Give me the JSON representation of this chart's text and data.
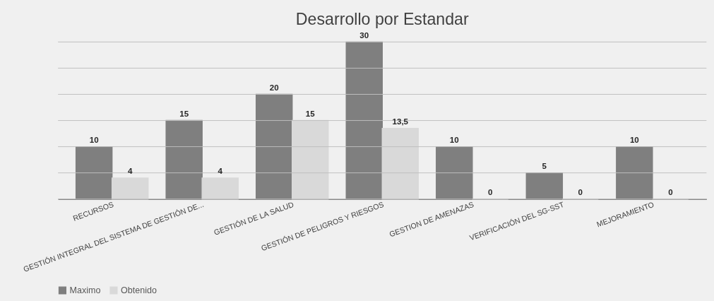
{
  "chart_data": {
    "type": "bar",
    "title": "Desarrollo por Estandar",
    "categories": [
      "RECURSOS",
      "GESTIÓN INTEGRAL DEL SISTEMA DE GESTIÓN DE...",
      "GESTIÓN DE LA SALUD",
      "GESTIÓN DE PELIGROS Y RIESGOS",
      "GESTION DE AMENAZAS",
      "VERIFICACIÓN DEL SG-SST",
      "MEJORAMIENTO"
    ],
    "series": [
      {
        "name": "Maximo",
        "color": "#7f7f7f",
        "values": [
          10,
          15,
          20,
          30,
          10,
          5,
          10
        ],
        "value_labels": [
          "10",
          "15",
          "20",
          "30",
          "10",
          "5",
          "10"
        ]
      },
      {
        "name": "Obtenido",
        "color": "#d9d9d9",
        "values": [
          4,
          4,
          15,
          13.5,
          0,
          0,
          0
        ],
        "value_labels": [
          "4",
          "4",
          "15",
          "13,5",
          "0",
          "0",
          "0"
        ]
      }
    ],
    "ylim": [
      0,
      30
    ],
    "yticks": [
      {
        "value": 0,
        "label": null
      },
      {
        "value": 5,
        "label": null
      },
      {
        "value": 10,
        "label": null
      },
      {
        "value": 15,
        "label": null
      },
      {
        "value": 20,
        "label": null
      },
      {
        "value": 25,
        "label": null
      },
      {
        "value": 30,
        "label": null
      }
    ],
    "tick_labels": "x",
    "grid": "y",
    "legend": "bottom"
  }
}
